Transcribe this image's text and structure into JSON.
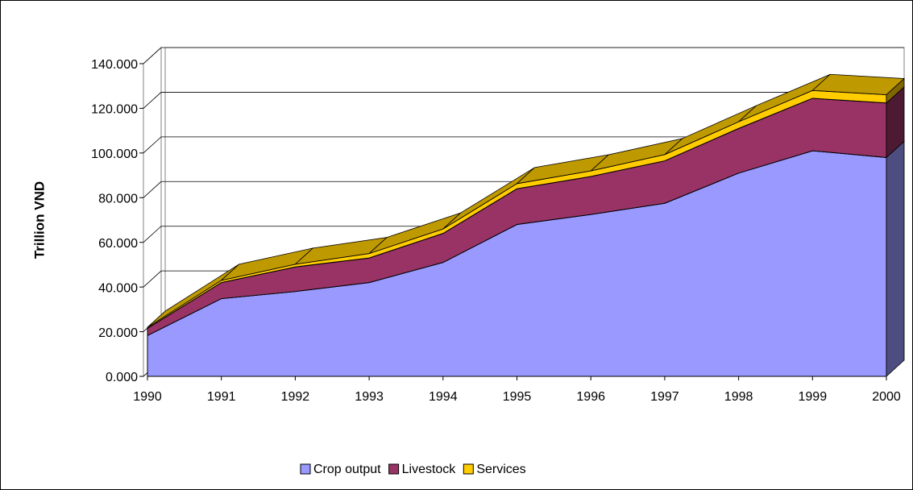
{
  "chart_data": {
    "type": "area3d",
    "stacked": true,
    "y_label": "Trillion VND",
    "categories": [
      "1990",
      "1991",
      "1992",
      "1993",
      "1994",
      "1995",
      "1996",
      "1997",
      "1998",
      "1999",
      "2000"
    ],
    "series": [
      {
        "name": "Crop output",
        "color": "#9999ff",
        "values": [
          18.3,
          34.8,
          38,
          42,
          51,
          68,
          72.5,
          77.5,
          91,
          101,
          98
        ]
      },
      {
        "name": "Livestock",
        "color": "#993366",
        "values": [
          3.2,
          7.2,
          11,
          11,
          13,
          16,
          17,
          19,
          20,
          23.5,
          24.4
        ]
      },
      {
        "name": "Services",
        "color": "#ffcc00",
        "values": [
          0.5,
          1,
          1.2,
          2,
          2,
          2.3,
          2.5,
          2.8,
          3,
          3.5,
          3.7
        ]
      }
    ],
    "ylim": [
      0,
      140
    ],
    "yticks": [
      {
        "value": 0,
        "label": "0.000"
      },
      {
        "value": 20,
        "label": "20.000"
      },
      {
        "value": 40,
        "label": "40.000"
      },
      {
        "value": 60,
        "label": "60.000"
      },
      {
        "value": 80,
        "label": "80.000"
      },
      {
        "value": 100,
        "label": "100.000"
      },
      {
        "value": 120,
        "label": "120.000"
      },
      {
        "value": 140,
        "label": "140.000"
      }
    ],
    "grid": true,
    "legend": "bottom"
  }
}
